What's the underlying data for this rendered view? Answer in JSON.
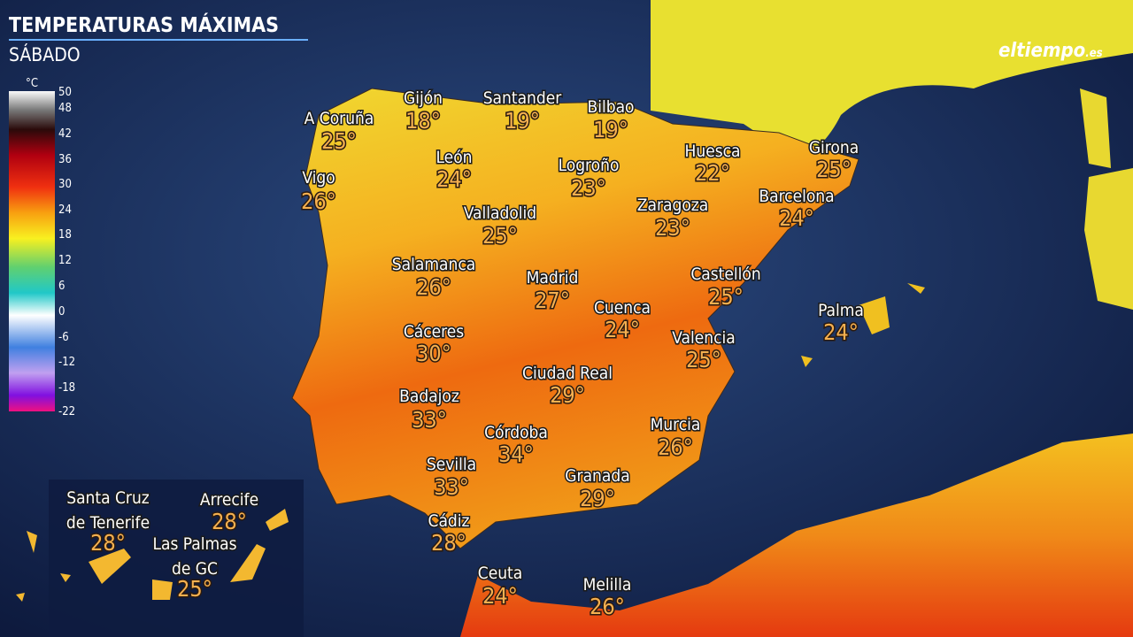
{
  "header": {
    "title": "TEMPERATURAS MÁXIMAS",
    "subtitle": "SÁBADO"
  },
  "logo": {
    "name": "eltiempo",
    "domain": ".es"
  },
  "legend": {
    "unit": "°C",
    "ticks": [
      "50",
      "48",
      "42",
      "36",
      "30",
      "24",
      "18",
      "12",
      "6",
      "0",
      "-6",
      "-12",
      "-18",
      "-22"
    ]
  },
  "cities": [
    {
      "name": [
        "A Coruña"
      ],
      "temp": "25°"
    },
    {
      "name": [
        "Gijón"
      ],
      "temp": "18°"
    },
    {
      "name": [
        "Santander"
      ],
      "temp": "19°"
    },
    {
      "name": [
        "Bilbao"
      ],
      "temp": "19°"
    },
    {
      "name": [
        "Vigo"
      ],
      "temp": "26°"
    },
    {
      "name": [
        "León"
      ],
      "temp": "24°"
    },
    {
      "name": [
        "Logroño"
      ],
      "temp": "23°"
    },
    {
      "name": [
        "Huesca"
      ],
      "temp": "22°"
    },
    {
      "name": [
        "Girona"
      ],
      "temp": "25°"
    },
    {
      "name": [
        "Barcelona"
      ],
      "temp": "24°"
    },
    {
      "name": [
        "Valladolid"
      ],
      "temp": "25°"
    },
    {
      "name": [
        "Zaragoza"
      ],
      "temp": "23°"
    },
    {
      "name": [
        "Salamanca"
      ],
      "temp": "26°"
    },
    {
      "name": [
        "Madrid"
      ],
      "temp": "27°"
    },
    {
      "name": [
        "Castellón"
      ],
      "temp": "25°"
    },
    {
      "name": [
        "Cuenca"
      ],
      "temp": "24°"
    },
    {
      "name": [
        "Palma"
      ],
      "temp": "24°"
    },
    {
      "name": [
        "Cáceres"
      ],
      "temp": "30°"
    },
    {
      "name": [
        "Valencia"
      ],
      "temp": "25°"
    },
    {
      "name": [
        "Ciudad Real"
      ],
      "temp": "29°"
    },
    {
      "name": [
        "Badajoz"
      ],
      "temp": "33°"
    },
    {
      "name": [
        "Córdoba"
      ],
      "temp": "34°"
    },
    {
      "name": [
        "Murcia"
      ],
      "temp": "26°"
    },
    {
      "name": [
        "Sevilla"
      ],
      "temp": "33°"
    },
    {
      "name": [
        "Granada"
      ],
      "temp": "29°"
    },
    {
      "name": [
        "Cádiz"
      ],
      "temp": "28°"
    },
    {
      "name": [
        "Ceuta"
      ],
      "temp": "24°"
    },
    {
      "name": [
        "Melilla"
      ],
      "temp": "26°"
    },
    {
      "name": [
        "Santa Cruz",
        "de Tenerife"
      ],
      "temp": "28°"
    },
    {
      "name": [
        "Arrecife"
      ],
      "temp": "28°"
    },
    {
      "name": [
        "Las Palmas",
        "de GC"
      ],
      "temp": "25°"
    }
  ]
}
